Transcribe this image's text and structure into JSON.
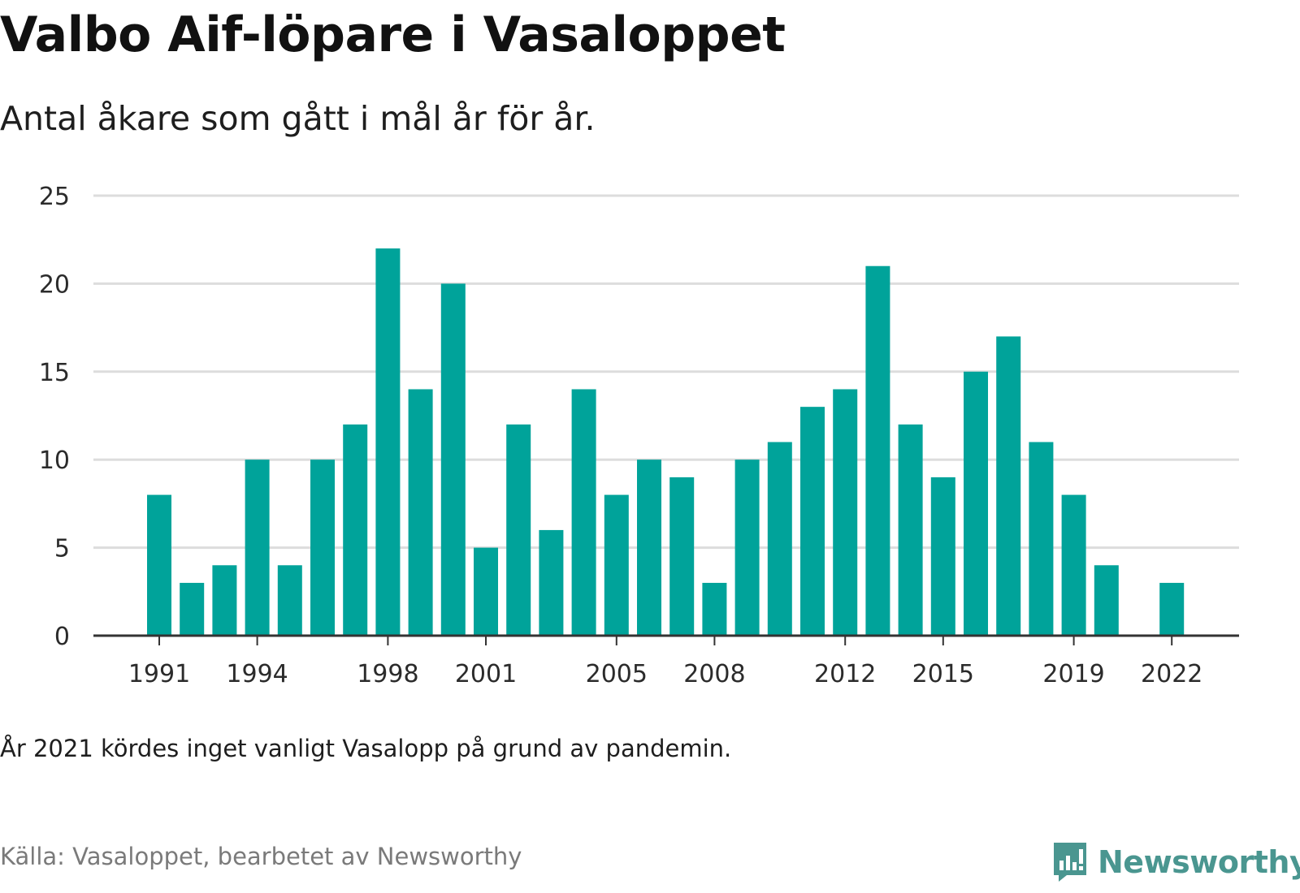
{
  "title": "Valbo Aif-löpare i Vasaloppet",
  "subtitle": "Antal åkare som gått i mål år för år.",
  "note": "År 2021 kördes inget vanligt Vasalopp på grund av pandemin.",
  "source": "Källa: Vasaloppet, bearbetet av Newsworthy",
  "brand": {
    "name": "Newsworthy",
    "icon": "newsworthy-bar-chart-logo-icon",
    "color": "#4a9690"
  },
  "colors": {
    "bar": "#00a39a",
    "grid": "#dddddd",
    "axis": "#333333"
  },
  "chart_data": {
    "type": "bar",
    "title": "Valbo Aif-löpare i Vasaloppet",
    "subtitle": "Antal åkare som gått i mål år för år.",
    "xlabel": "",
    "ylabel": "",
    "x": [
      1991,
      1992,
      1993,
      1994,
      1995,
      1996,
      1997,
      1998,
      1999,
      2000,
      2001,
      2002,
      2003,
      2004,
      2005,
      2006,
      2007,
      2008,
      2009,
      2010,
      2011,
      2012,
      2013,
      2014,
      2015,
      2016,
      2017,
      2018,
      2019,
      2020,
      2021,
      2022
    ],
    "values": [
      8,
      3,
      4,
      10,
      4,
      10,
      12,
      22,
      14,
      20,
      5,
      12,
      6,
      14,
      8,
      10,
      9,
      3,
      10,
      11,
      13,
      14,
      21,
      12,
      9,
      15,
      17,
      11,
      8,
      4,
      null,
      3
    ],
    "x_ticks": [
      "1991",
      "1994",
      "1998",
      "2001",
      "2005",
      "2008",
      "2012",
      "2015",
      "2019",
      "2022"
    ],
    "y_ticks": [
      "0",
      "5",
      "10",
      "15",
      "20",
      "25"
    ],
    "ylim": [
      0,
      25
    ],
    "grid": true,
    "legend": "none"
  }
}
